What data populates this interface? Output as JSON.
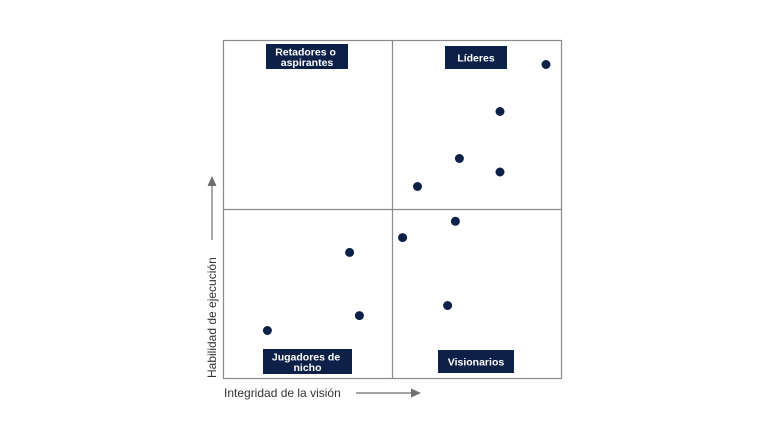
{
  "quadrants": {
    "top_left": [
      "Retadores o",
      "aspirantes"
    ],
    "top_right": [
      "Líderes"
    ],
    "bottom_left": [
      "Jugadores de",
      "nicho"
    ],
    "bottom_right": [
      "Visionarios"
    ]
  },
  "axes": {
    "x_label": "Integridad de la visión",
    "y_label": "Habilidad de ejecución"
  },
  "colors": {
    "label_bg": "#0d2148",
    "dot": "#0d2148",
    "frame": "#8a8a8a",
    "arrow": "#6e6e6e"
  },
  "points_note": "Positions read as fractions of chart width (x, left→right) and height (y, bottom→top)",
  "points": [
    {
      "x": 0.954,
      "y": 0.929
    },
    {
      "x": 0.818,
      "y": 0.79
    },
    {
      "x": 0.698,
      "y": 0.651
    },
    {
      "x": 0.818,
      "y": 0.611
    },
    {
      "x": 0.574,
      "y": 0.568
    },
    {
      "x": 0.686,
      "y": 0.465
    },
    {
      "x": 0.53,
      "y": 0.417
    },
    {
      "x": 0.373,
      "y": 0.373
    },
    {
      "x": 0.663,
      "y": 0.216
    },
    {
      "x": 0.402,
      "y": 0.186
    },
    {
      "x": 0.13,
      "y": 0.142
    }
  ]
}
